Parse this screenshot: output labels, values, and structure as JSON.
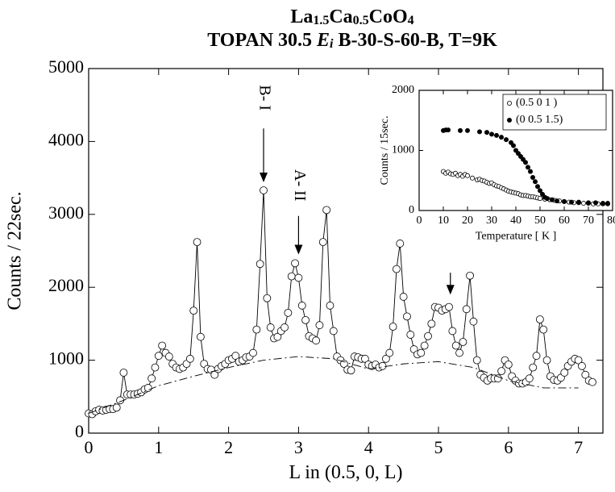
{
  "chart_data": [
    {
      "type": "line",
      "title": [
        [
          {
            "text": "La",
            "style": "normal"
          },
          {
            "text": "1.5",
            "style": "sub"
          },
          {
            "text": "Ca",
            "style": "normal"
          },
          {
            "text": "0.5",
            "style": "sub"
          },
          {
            "text": "CoO",
            "style": "normal"
          },
          {
            "text": "4",
            "style": "sub"
          }
        ],
        [
          {
            "text": "TOPAN 30.5 ",
            "style": "normal"
          },
          {
            "text": "E",
            "style": "italic"
          },
          {
            "text": "i",
            "style": "italic-sub"
          },
          {
            "text": " B-30-S-60-B, T=9K",
            "style": "normal"
          }
        ]
      ],
      "xlabel": "L in (0.5, 0, L)",
      "ylabel": "Counts / 22sec.",
      "xlim": [
        0,
        7.35
      ],
      "ylim": [
        0,
        5000
      ],
      "xticks": [
        0,
        1,
        2,
        3,
        4,
        5,
        6,
        7
      ],
      "yticks": [
        0,
        1000,
        2000,
        3000,
        4000,
        5000
      ],
      "annotations": [
        "B- I",
        "A- II"
      ],
      "series": [
        {
          "color": "#000000",
          "marker": "open-circle",
          "line": "solid",
          "x": [
            0,
            0.05,
            0.1,
            0.15,
            0.2,
            0.25,
            0.3,
            0.35,
            0.4,
            0.45,
            0.5,
            0.55,
            0.6,
            0.65,
            0.7,
            0.75,
            0.8,
            0.85,
            0.9,
            0.95,
            1.0,
            1.05,
            1.1,
            1.15,
            1.2,
            1.25,
            1.3,
            1.35,
            1.4,
            1.45,
            1.5,
            1.55,
            1.6,
            1.65,
            1.7,
            1.75,
            1.8,
            1.85,
            1.9,
            1.95,
            2.0,
            2.05,
            2.1,
            2.15,
            2.2,
            2.25,
            2.3,
            2.35,
            2.4,
            2.45,
            2.5,
            2.55,
            2.6,
            2.65,
            2.7,
            2.75,
            2.8,
            2.85,
            2.9,
            2.95,
            3.0,
            3.05,
            3.1,
            3.15,
            3.2,
            3.25,
            3.3,
            3.35,
            3.4,
            3.45,
            3.5,
            3.55,
            3.6,
            3.65,
            3.7,
            3.75,
            3.8,
            3.85,
            3.9,
            3.95,
            4.0,
            4.05,
            4.1,
            4.15,
            4.2,
            4.25,
            4.3,
            4.35,
            4.4,
            4.45,
            4.5,
            4.55,
            4.6,
            4.65,
            4.7,
            4.75,
            4.8,
            4.85,
            4.9,
            4.95,
            5.0,
            5.05,
            5.1,
            5.15,
            5.2,
            5.25,
            5.3,
            5.35,
            5.4,
            5.45,
            5.5,
            5.55,
            5.6,
            5.65,
            5.7,
            5.75,
            5.8,
            5.85,
            5.9,
            5.95,
            6.0,
            6.05,
            6.1,
            6.15,
            6.2,
            6.25,
            6.3,
            6.35,
            6.4,
            6.45,
            6.5,
            6.55,
            6.6,
            6.65,
            6.7,
            6.75,
            6.8,
            6.85,
            6.9,
            6.95,
            7.0,
            7.05,
            7.1,
            7.15,
            7.2
          ],
          "values": [
            270,
            260,
            300,
            320,
            310,
            320,
            330,
            330,
            350,
            450,
            830,
            530,
            530,
            530,
            540,
            560,
            600,
            620,
            750,
            900,
            1060,
            1200,
            1100,
            1050,
            950,
            900,
            880,
            900,
            950,
            1020,
            1680,
            2620,
            1320,
            950,
            880,
            870,
            800,
            880,
            920,
            950,
            1000,
            1020,
            1060,
            980,
            1000,
            1040,
            1050,
            1100,
            1420,
            2320,
            3330,
            1850,
            1450,
            1300,
            1320,
            1400,
            1450,
            1650,
            2150,
            2330,
            2130,
            1750,
            1550,
            1330,
            1300,
            1270,
            1480,
            2620,
            3060,
            1750,
            1400,
            1050,
            1000,
            950,
            870,
            860,
            1050,
            1040,
            1020,
            1020,
            940,
            920,
            940,
            900,
            920,
            1020,
            1100,
            1460,
            2250,
            2600,
            1870,
            1600,
            1350,
            1150,
            1080,
            1100,
            1200,
            1330,
            1500,
            1730,
            1720,
            1680,
            1700,
            1730,
            1400,
            1200,
            1100,
            1250,
            1700,
            2160,
            1530,
            1000,
            800,
            760,
            720,
            750,
            750,
            750,
            850,
            1000,
            940,
            780,
            720,
            680,
            680,
            700,
            750,
            900,
            1060,
            1560,
            1420,
            1000,
            780,
            730,
            720,
            760,
            830,
            920,
            980,
            1020,
            1000,
            920,
            800,
            720,
            700
          ]
        },
        {
          "color": "#000000",
          "marker": "none",
          "line": "dash-dot",
          "x": [
            0,
            0.5,
            1,
            1.5,
            2,
            2.5,
            3,
            3.5,
            4,
            4.5,
            5,
            5.5,
            6,
            6.5,
            7
          ],
          "values": [
            270,
            450,
            650,
            780,
            900,
            1000,
            1050,
            1020,
            880,
            950,
            980,
            900,
            720,
            620,
            620
          ]
        }
      ]
    },
    {
      "type": "scatter",
      "xlabel": "Temperature [ K ]",
      "ylabel": "Counts / 15sec.",
      "xlim": [
        0,
        80
      ],
      "ylim": [
        0,
        2000
      ],
      "xticks": [
        0,
        10,
        20,
        30,
        40,
        50,
        60,
        70,
        80
      ],
      "yticks": [
        0,
        1000,
        2000
      ],
      "series": [
        {
          "name": "(0.5 0 1 )",
          "color": "#000000",
          "marker": "open-circle",
          "x": [
            10,
            11,
            12,
            13,
            14,
            15,
            16,
            17,
            18,
            19,
            20,
            22,
            24,
            25,
            26,
            27,
            28,
            29,
            30,
            31,
            32,
            33,
            34,
            35,
            36,
            37,
            38,
            39,
            40,
            41,
            42,
            43,
            44,
            45,
            46,
            47,
            48,
            49,
            50,
            52,
            54,
            56,
            58,
            60,
            62,
            64,
            66,
            68,
            70,
            72,
            74,
            76,
            78
          ],
          "values": [
            650,
            620,
            640,
            610,
            600,
            620,
            580,
            600,
            570,
            600,
            580,
            540,
            510,
            520,
            500,
            490,
            470,
            450,
            460,
            430,
            410,
            400,
            380,
            360,
            340,
            320,
            310,
            300,
            290,
            280,
            260,
            250,
            250,
            240,
            230,
            230,
            220,
            210,
            200,
            190,
            180,
            170,
            160,
            150,
            140,
            130,
            130,
            120,
            120,
            110,
            110,
            110,
            110
          ]
        },
        {
          "name": "(0 0.5 1.5)",
          "color": "#000000",
          "marker": "filled-circle",
          "x": [
            10,
            11,
            12,
            17,
            20,
            25,
            28,
            30,
            32,
            34,
            36,
            38,
            39,
            40,
            41,
            42,
            43,
            44,
            45,
            46,
            47,
            48,
            49,
            50,
            51,
            52,
            53,
            55,
            57,
            60,
            63,
            66,
            70,
            73,
            76,
            78
          ],
          "values": [
            1330,
            1340,
            1340,
            1330,
            1330,
            1310,
            1300,
            1270,
            1250,
            1220,
            1180,
            1130,
            1080,
            1000,
            950,
            900,
            850,
            800,
            720,
            650,
            550,
            480,
            400,
            330,
            270,
            220,
            200,
            180,
            160,
            150,
            140,
            140,
            130,
            130,
            120,
            120
          ]
        }
      ]
    }
  ]
}
